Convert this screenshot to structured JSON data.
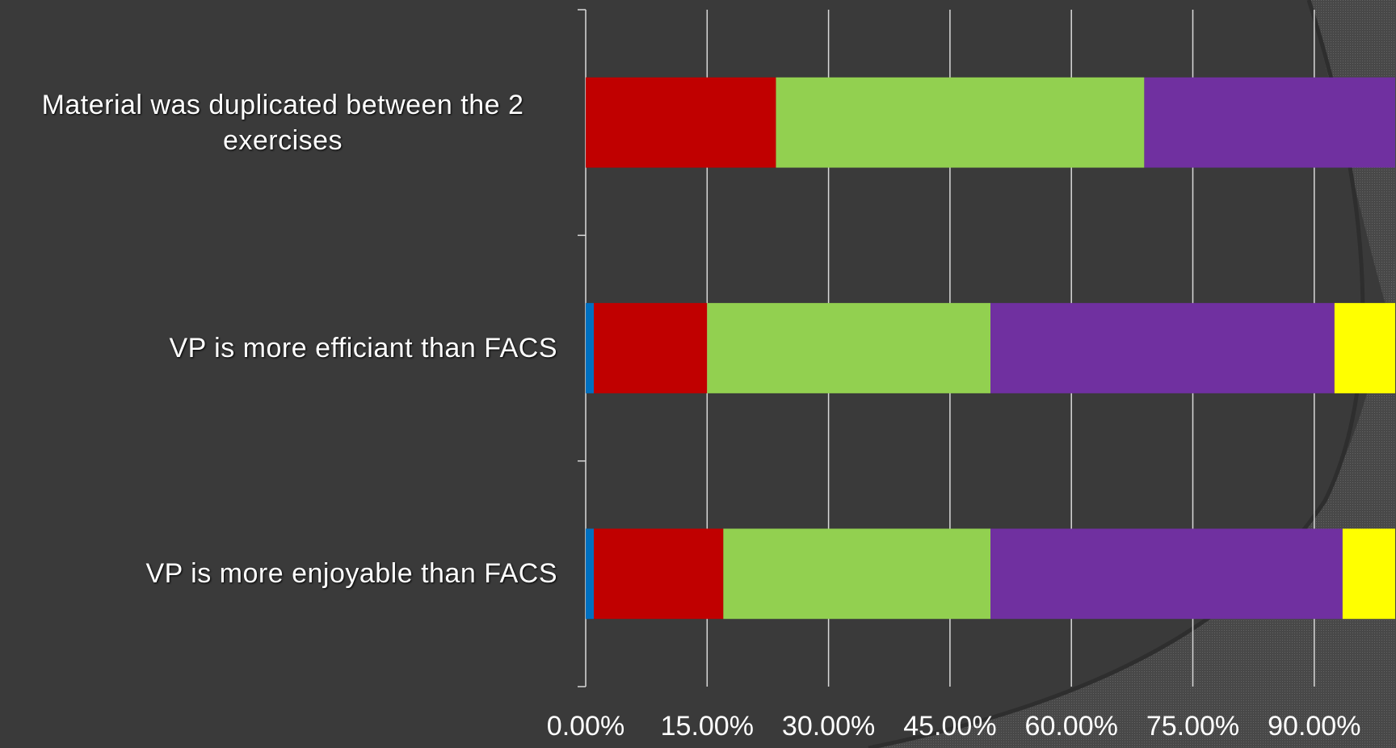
{
  "chart_data": {
    "type": "bar",
    "orientation": "horizontal",
    "stacked": true,
    "categories": [
      "Material was duplicated between the 2 exercises",
      "VP is more efficiant than FACS",
      "VP is more enjoyable than FACS"
    ],
    "series": [
      {
        "values": [
          0.0,
          1.0,
          1.0
        ]
      },
      {
        "values": [
          23.5,
          14.0,
          16.0
        ]
      },
      {
        "values": [
          45.5,
          35.0,
          33.0
        ]
      },
      {
        "values": [
          31.0,
          42.5,
          43.5
        ]
      },
      {
        "values": [
          0.0,
          7.5,
          6.5
        ]
      }
    ],
    "colors": [
      "#0070c0",
      "#c00000",
      "#92d050",
      "#7030a0",
      "#ffff00"
    ],
    "xlim": [
      0,
      100
    ],
    "x_ticks": [
      0,
      15,
      30,
      45,
      60,
      75,
      90
    ],
    "x_tick_labels": [
      "0.00%",
      "15.00%",
      "30.00%",
      "45.00%",
      "60.00%",
      "75.00%",
      "90.00%"
    ],
    "grid": true,
    "title": "",
    "xlabel": "",
    "ylabel": ""
  }
}
